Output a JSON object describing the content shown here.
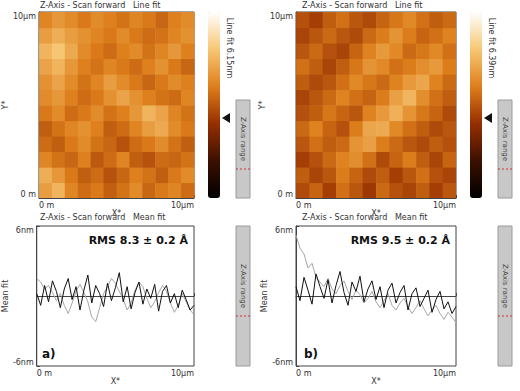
{
  "chart_data": [
    {
      "type": "heatmap",
      "title": "Z-Axis - Scan forward   Line fit",
      "xlabel": "X*",
      "ylabel": "Y*",
      "xlim": [
        0,
        10
      ],
      "ylim": [
        0,
        10
      ],
      "xticks": [
        {
          "value": 0,
          "label": "0 m"
        },
        {
          "value": 10,
          "label": "10µm"
        }
      ],
      "yticks": [
        {
          "value": 0,
          "label": "0 m"
        },
        {
          "value": 10,
          "label": "10µm"
        }
      ],
      "x": [
        0.42,
        1.25,
        2.08,
        2.92,
        3.75,
        4.58,
        5.42,
        6.25,
        7.08,
        7.92,
        8.75,
        9.58
      ],
      "y": [
        0.42,
        1.25,
        2.08,
        2.92,
        3.75,
        4.58,
        5.42,
        6.25,
        7.08,
        7.92,
        8.75,
        9.58
      ],
      "cells": [
        [
          4.2,
          4.6,
          3.8,
          3.4,
          3.6,
          3.2,
          3.5,
          3.9,
          3.3,
          3.6,
          3.8,
          3.4
        ],
        [
          4.5,
          4.1,
          3.6,
          3.2,
          3.4,
          3.0,
          3.3,
          3.7,
          3.5,
          3.2,
          3.6,
          3.9
        ],
        [
          3.8,
          3.5,
          3.3,
          3.7,
          3.1,
          3.4,
          3.8,
          3.2,
          3.0,
          3.4,
          3.3,
          3.5
        ],
        [
          3.4,
          3.2,
          3.6,
          3.9,
          3.5,
          3.3,
          3.0,
          3.4,
          3.6,
          3.9,
          3.5,
          3.2
        ],
        [
          3.2,
          3.5,
          3.8,
          4.0,
          3.7,
          3.2,
          3.4,
          3.8,
          4.2,
          4.4,
          3.9,
          3.6
        ],
        [
          3.6,
          3.9,
          3.4,
          3.6,
          3.9,
          3.5,
          3.7,
          4.1,
          4.6,
          4.3,
          3.8,
          3.5
        ],
        [
          3.9,
          4.1,
          3.7,
          3.4,
          3.6,
          4.0,
          4.3,
          4.0,
          3.7,
          3.5,
          3.4,
          3.8
        ],
        [
          4.0,
          4.3,
          3.9,
          3.5,
          3.8,
          4.2,
          3.9,
          3.6,
          3.3,
          3.6,
          3.9,
          3.7
        ],
        [
          4.3,
          4.6,
          4.1,
          3.7,
          3.5,
          3.8,
          3.6,
          3.4,
          3.7,
          4.0,
          3.6,
          3.3
        ],
        [
          4.6,
          4.9,
          4.4,
          3.9,
          3.6,
          3.4,
          3.7,
          3.9,
          3.5,
          3.8,
          4.1,
          3.7
        ],
        [
          4.2,
          4.5,
          4.2,
          4.0,
          3.8,
          3.6,
          3.9,
          3.6,
          3.4,
          3.5,
          3.8,
          4.0
        ],
        [
          3.8,
          4.1,
          3.9,
          3.6,
          3.9,
          3.7,
          3.5,
          3.8,
          3.6,
          3.3,
          3.7,
          3.9
        ]
      ],
      "colorbar_range": [
        0,
        6.15
      ],
      "colorbar_label": "Line fit 6.15nm",
      "side_label": "Z-Axis range"
    },
    {
      "type": "heatmap",
      "title": "Z-Axis - Scan forward   Line fit",
      "xlabel": "X*",
      "ylabel": "Y*",
      "xlim": [
        0,
        10
      ],
      "ylim": [
        0,
        10
      ],
      "xticks": [
        {
          "value": 0,
          "label": "0 m"
        },
        {
          "value": 10,
          "label": "10µm"
        }
      ],
      "yticks": [
        {
          "value": 0,
          "label": "0 m"
        },
        {
          "value": 10,
          "label": "10µm"
        }
      ],
      "x": [
        0.42,
        1.25,
        2.08,
        2.92,
        3.75,
        4.58,
        5.42,
        6.25,
        7.08,
        7.92,
        8.75,
        9.58
      ],
      "y": [
        0.42,
        1.25,
        2.08,
        2.92,
        3.75,
        4.58,
        5.42,
        6.25,
        7.08,
        7.92,
        8.75,
        9.58
      ],
      "cells": [
        [
          3.0,
          3.4,
          2.8,
          3.6,
          3.2,
          2.7,
          3.5,
          3.1,
          2.9,
          3.3,
          2.8,
          3.2
        ],
        [
          3.3,
          2.9,
          3.2,
          3.8,
          3.4,
          3.0,
          3.3,
          2.8,
          3.2,
          3.6,
          3.1,
          2.9
        ],
        [
          2.8,
          3.1,
          3.5,
          3.9,
          4.1,
          3.6,
          3.0,
          3.4,
          3.8,
          3.3,
          2.9,
          3.4
        ],
        [
          3.2,
          3.6,
          3.3,
          3.5,
          4.2,
          4.4,
          3.8,
          3.5,
          3.2,
          3.0,
          3.3,
          3.1
        ],
        [
          3.5,
          3.9,
          3.4,
          3.1,
          3.8,
          4.5,
          4.6,
          4.0,
          3.6,
          3.3,
          3.0,
          3.2
        ],
        [
          3.1,
          3.3,
          3.7,
          3.4,
          3.2,
          3.9,
          4.3,
          4.7,
          4.2,
          3.7,
          3.4,
          3.0
        ],
        [
          2.9,
          3.2,
          3.5,
          3.9,
          3.6,
          3.4,
          3.8,
          4.4,
          4.8,
          4.1,
          3.6,
          3.3
        ],
        [
          3.3,
          3.0,
          3.2,
          3.6,
          4.0,
          3.7,
          3.5,
          3.9,
          4.3,
          4.5,
          3.9,
          3.5
        ],
        [
          3.6,
          3.3,
          2.9,
          3.3,
          3.7,
          4.2,
          4.0,
          3.6,
          3.8,
          4.1,
          4.3,
          3.8
        ],
        [
          3.2,
          3.5,
          3.1,
          2.9,
          3.4,
          3.9,
          4.3,
          4.0,
          3.5,
          3.7,
          4.0,
          3.6
        ],
        [
          2.9,
          3.2,
          3.5,
          3.2,
          3.0,
          3.5,
          3.8,
          4.2,
          3.8,
          3.4,
          3.6,
          3.9
        ],
        [
          3.1,
          2.8,
          3.3,
          3.6,
          3.2,
          3.0,
          3.4,
          3.7,
          4.0,
          3.6,
          3.3,
          3.5
        ]
      ],
      "colorbar_range": [
        0,
        6.39
      ],
      "colorbar_label": "Line fit 6.39nm",
      "side_label": "Z-Axis range"
    },
    {
      "type": "line",
      "title": "Z-Axis - Scan forward   Mean fit",
      "xlabel": "X*",
      "ylabel": "Mean fit",
      "xlim": [
        0,
        10
      ],
      "ylim": [
        -6,
        6
      ],
      "xticks": [
        {
          "value": 0,
          "label": "0 m"
        },
        {
          "value": 10,
          "label": "10µm"
        }
      ],
      "yticks": [
        {
          "value": -6,
          "label": "-6nm"
        },
        {
          "value": 6,
          "label": "6nm"
        }
      ],
      "annotation": "RMS 8.3 ± 0.2 Å",
      "panel_label": "a)",
      "side_label": "Z-Axis range",
      "x": [
        0,
        0.25,
        0.5,
        0.75,
        1,
        1.25,
        1.5,
        1.75,
        2,
        2.25,
        2.5,
        2.75,
        3,
        3.25,
        3.5,
        3.75,
        4,
        4.25,
        4.5,
        4.75,
        5,
        5.25,
        5.5,
        5.75,
        6,
        6.25,
        6.5,
        6.75,
        7,
        7.25,
        7.5,
        7.75,
        8,
        8.25,
        8.5,
        8.75,
        9,
        9.25,
        9.5,
        9.75,
        10
      ],
      "series": [
        {
          "color": "#a6a6a6",
          "values": [
            1.5,
            1.2,
            0.6,
            0.9,
            0.3,
            -0.4,
            0.2,
            -0.8,
            -1.5,
            -0.6,
            0.4,
            1.0,
            0.3,
            -0.5,
            -1.8,
            -2.2,
            -1.0,
            0.2,
            0.8,
            1.5,
            1.1,
            0.4,
            -0.3,
            -1.2,
            -0.6,
            0.5,
            1.2,
            0.8,
            -0.2,
            -1.0,
            -0.5,
            0.3,
            0.9,
            0.4,
            -0.6,
            -1.4,
            -0.8,
            0.2,
            -0.5,
            -1.2,
            -1.6
          ]
        },
        {
          "color": "#111111",
          "values": [
            0.2,
            -0.8,
            0.9,
            -0.5,
            1.3,
            0.4,
            -1.0,
            0.6,
            1.5,
            -0.3,
            0.8,
            -1.2,
            0.5,
            1.8,
            -0.6,
            0.9,
            0.2,
            -0.9,
            1.1,
            -0.4,
            0.7,
            2.0,
            -0.5,
            0.8,
            -1.1,
            0.3,
            1.2,
            -0.7,
            0.6,
            -0.2,
            1.0,
            -1.3,
            0.4,
            0.9,
            -0.6,
            0.2,
            -1.0,
            0.5,
            -0.3,
            -1.2,
            -0.8
          ]
        }
      ]
    },
    {
      "type": "line",
      "title": "Z-Axis - Scan forward   Mean fit",
      "xlabel": "X*",
      "ylabel": "Mean fit",
      "xlim": [
        0,
        10
      ],
      "ylim": [
        -6,
        6
      ],
      "xticks": [
        {
          "value": 0,
          "label": "0 m"
        },
        {
          "value": 10,
          "label": "10µm"
        }
      ],
      "yticks": [
        {
          "value": -6,
          "label": "-6nm"
        },
        {
          "value": 6,
          "label": "6nm"
        }
      ],
      "annotation": "RMS 9.5 ± 0.2 Å",
      "panel_label": "b)",
      "side_label": "Z-Axis range",
      "x": [
        0,
        0.25,
        0.5,
        0.75,
        1,
        1.25,
        1.5,
        1.75,
        2,
        2.25,
        2.5,
        2.75,
        3,
        3.25,
        3.5,
        3.75,
        4,
        4.25,
        4.5,
        4.75,
        5,
        5.25,
        5.5,
        5.75,
        6,
        6.25,
        6.5,
        6.75,
        7,
        7.25,
        7.5,
        7.75,
        8,
        8.25,
        8.5,
        8.75,
        9,
        9.25,
        9.5,
        9.75,
        10
      ],
      "series": [
        {
          "color": "#a6a6a6",
          "values": [
            5.2,
            4.1,
            3.6,
            2.4,
            2.8,
            1.6,
            1.2,
            0.8,
            1.5,
            0.6,
            0.2,
            0.9,
            1.3,
            0.4,
            -0.3,
            0.5,
            0.1,
            -0.6,
            -0.2,
            0.4,
            -0.5,
            -1.0,
            -0.4,
            0.2,
            -0.8,
            -1.2,
            -0.6,
            -0.2,
            -0.9,
            -1.5,
            -1.0,
            -0.4,
            -1.1,
            -1.7,
            -1.2,
            -0.8,
            -1.5,
            -2.0,
            -1.4,
            -1.8,
            -2.3
          ]
        },
        {
          "color": "#111111",
          "values": [
            0.8,
            -0.4,
            1.6,
            0.5,
            -0.7,
            1.9,
            0.8,
            -0.2,
            1.4,
            -0.6,
            0.9,
            2.1,
            0.3,
            -0.8,
            1.2,
            0.4,
            1.7,
            -0.5,
            0.6,
            1.3,
            -0.3,
            0.8,
            -1.0,
            0.5,
            1.1,
            -0.6,
            0.3,
            0.9,
            -1.2,
            0.2,
            0.7,
            -0.9,
            -0.2,
            0.5,
            -1.4,
            -0.3,
            0.4,
            -1.1,
            -0.5,
            -1.5,
            -0.9
          ]
        }
      ]
    }
  ]
}
